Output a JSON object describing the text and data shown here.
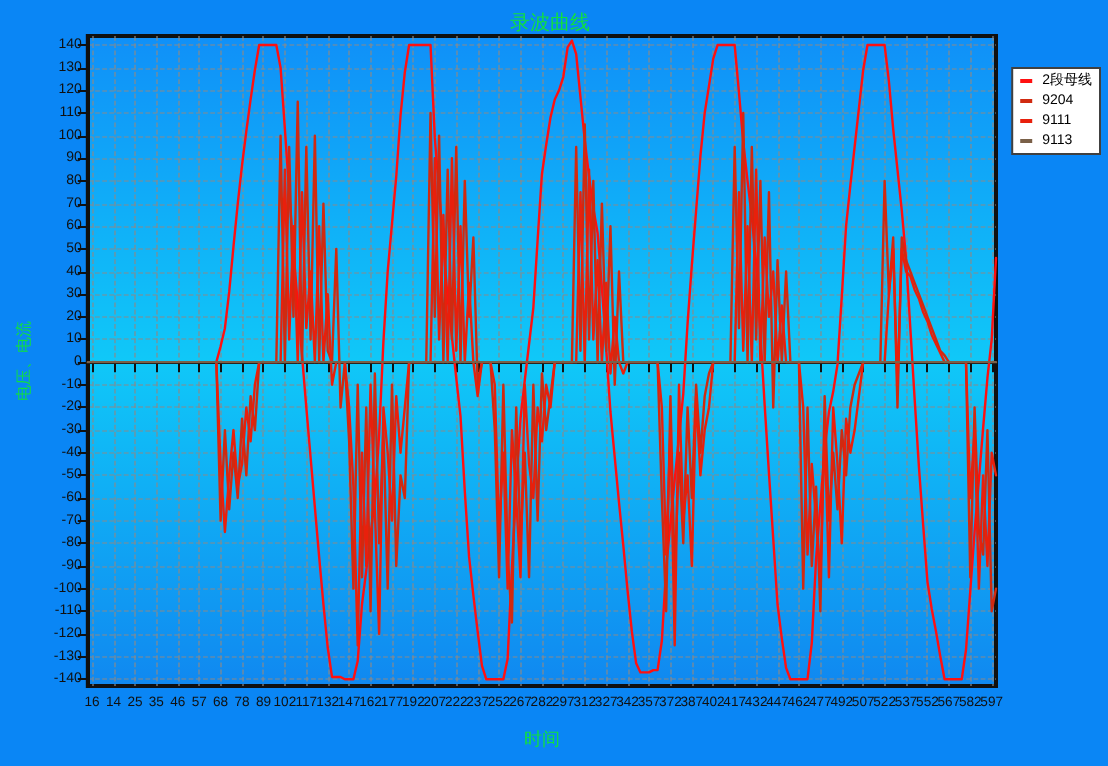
{
  "chart_data": {
    "type": "line",
    "title": "录波曲线",
    "xlabel": "时间",
    "ylabel": "电压、电流",
    "categories": [
      null,
      "16",
      null,
      null,
      null,
      null,
      "14",
      null,
      null,
      null,
      null,
      "25",
      null,
      null,
      null,
      null,
      "35",
      null,
      null,
      null,
      null,
      "46",
      null,
      null,
      null,
      null,
      "57",
      null,
      null,
      null,
      null,
      "68",
      null,
      null,
      null,
      null,
      "78",
      null,
      null,
      null,
      null,
      "89",
      null,
      null,
      null,
      null,
      "102",
      null,
      null,
      null,
      null,
      "117",
      null,
      null,
      null,
      null,
      "132",
      null,
      null,
      null,
      null,
      "147",
      null,
      null,
      null,
      null,
      "162",
      null,
      null,
      null,
      null,
      "177",
      null,
      null,
      null,
      null,
      "192",
      null,
      null,
      null,
      null,
      "207",
      null,
      null,
      null,
      null,
      "222",
      null,
      null,
      null,
      null,
      "237",
      null,
      null,
      null,
      null,
      "252",
      null,
      null,
      null,
      null,
      "267",
      null,
      null,
      null,
      null,
      "282",
      null,
      null,
      null,
      null,
      "297",
      null,
      null,
      null,
      null,
      "312",
      null,
      null,
      null,
      null,
      "327",
      null,
      null,
      null,
      null,
      "342",
      null,
      null,
      null,
      null,
      "357",
      null,
      null,
      null,
      null,
      "372",
      null,
      null,
      null,
      null,
      "387",
      null,
      null,
      null,
      null,
      "402",
      null,
      null,
      null,
      null,
      "417",
      null,
      null,
      null,
      null,
      "432",
      null,
      null,
      null,
      null,
      "447",
      null,
      null,
      null,
      null,
      "462",
      null,
      null,
      null,
      null,
      "477",
      null,
      null,
      null,
      null,
      "492",
      null,
      null,
      null,
      null,
      "507",
      null,
      null,
      null,
      null,
      "522",
      null,
      null,
      null,
      null,
      "537",
      null,
      null,
      null,
      null,
      "552",
      null,
      null,
      null,
      null,
      "567",
      null,
      null,
      null,
      null,
      "582",
      null,
      null,
      null,
      null,
      "597",
      null
    ],
    "ylim": [
      -143,
      144
    ],
    "yticks": [
      -140,
      -130,
      -120,
      -110,
      -100,
      -90,
      -80,
      -70,
      -60,
      -50,
      -40,
      -30,
      -20,
      -10,
      0,
      10,
      20,
      30,
      40,
      50,
      60,
      70,
      80,
      90,
      100,
      110,
      120,
      130,
      140
    ],
    "grid": true,
    "legend": "top right",
    "marker": "none",
    "line_style": "solid",
    "series": [
      {
        "name": "2段母线",
        "color": "#ff1010",
        "values": [
          null,
          null,
          null,
          null,
          null,
          null,
          null,
          null,
          null,
          null,
          null,
          null,
          null,
          null,
          null,
          null,
          null,
          null,
          null,
          null,
          null,
          null,
          null,
          null,
          null,
          null,
          null,
          null,
          null,
          null,
          0,
          7,
          15,
          31,
          51,
          70,
          87,
          102,
          116,
          129,
          140,
          140,
          140,
          140,
          140,
          130,
          103,
          75,
          49,
          26,
          3,
          -20,
          -42,
          -64,
          -86,
          -107,
          -126,
          -139,
          -139,
          -139,
          -140,
          -140,
          -140,
          -132,
          -107,
          -92,
          -76,
          -61,
          -32,
          9,
          40,
          61,
          82,
          109,
          128,
          140,
          140,
          140,
          140,
          140,
          140,
          99,
          75,
          52,
          28,
          11,
          -7,
          -24,
          -57,
          -86,
          -103,
          -119,
          -134,
          -140,
          -140,
          -140,
          -140,
          -140,
          -131,
          -91,
          -56,
          -25,
          -8,
          8,
          24,
          54,
          83,
          96,
          108,
          116,
          120,
          126,
          139,
          142,
          136,
          117,
          98,
          82,
          68,
          57,
          33,
          6,
          -22,
          -42,
          -62,
          -81,
          -101,
          -119,
          -133,
          -137,
          -137,
          -137,
          -136,
          -136,
          -123,
          -91,
          -71,
          -52,
          -33,
          -14,
          17,
          43,
          67,
          91,
          110,
          122,
          134,
          140,
          140,
          140,
          140,
          140,
          119,
          97,
          80,
          64,
          44,
          13,
          -19,
          -49,
          -78,
          -107,
          -122,
          -135,
          -140,
          -140,
          -140,
          -140,
          -140,
          -124,
          -87,
          -63,
          -39,
          -22,
          -13,
          -1,
          29,
          60,
          78,
          95,
          112,
          129,
          140,
          140,
          140,
          140,
          140,
          124,
          103,
          85,
          67,
          46,
          15,
          -16,
          -46,
          -72,
          -97,
          -109,
          -119,
          -130,
          -140,
          -140,
          -140,
          -140,
          -140,
          -127,
          -101,
          -75,
          -52,
          -29,
          -7,
          10,
          46
        ]
      },
      {
        "name": "9204",
        "color": "#d02a10",
        "values": [
          null,
          null,
          null,
          null,
          null,
          null,
          null,
          null,
          null,
          null,
          null,
          null,
          null,
          null,
          null,
          null,
          null,
          null,
          null,
          null,
          null,
          null,
          null,
          null,
          null,
          null,
          null,
          null,
          null,
          null,
          0,
          -70,
          -30,
          -65,
          -40,
          -60,
          -25,
          -50,
          -15,
          -30,
          0,
          0,
          0,
          0,
          0,
          100,
          0,
          95,
          20,
          115,
          0,
          95,
          10,
          100,
          0,
          70,
          5,
          0,
          50,
          -20,
          0,
          -35,
          -100,
          -10,
          -95,
          -20,
          -110,
          -5,
          -80,
          -30,
          -100,
          -10,
          -90,
          -50,
          -60,
          0,
          0,
          0,
          0,
          0,
          110,
          20,
          100,
          0,
          85,
          10,
          95,
          0,
          80,
          20,
          55,
          -10,
          0,
          0,
          0,
          -30,
          -95,
          -10,
          -85,
          -115,
          -20,
          -80,
          -40,
          -95,
          -10,
          -70,
          -5,
          -30,
          -15,
          0,
          0,
          0,
          0,
          0,
          95,
          5,
          105,
          10,
          80,
          0,
          70,
          5,
          60,
          -10,
          40,
          0,
          0,
          0,
          0,
          0,
          0,
          0,
          0,
          0,
          -60,
          -110,
          -15,
          -95,
          -40,
          -80,
          -20,
          -60,
          -10,
          -40,
          -15,
          -5,
          0,
          0,
          0,
          0,
          0,
          95,
          15,
          110,
          0,
          95,
          10,
          80,
          0,
          75,
          -20,
          45,
          0,
          40,
          0,
          0,
          0,
          -100,
          -20,
          -90,
          -55,
          -110,
          -15,
          -70,
          -40,
          -65,
          -30,
          -50,
          -20,
          -10,
          -5,
          0,
          0,
          0,
          0,
          0,
          80,
          30,
          55,
          -20,
          55,
          45,
          40,
          35,
          30,
          25,
          20,
          15,
          10,
          5,
          3,
          0,
          0,
          0,
          0,
          0,
          -95,
          -20,
          -75,
          -85,
          -30,
          -110,
          -100
        ]
      },
      {
        "name": "9111",
        "color": "#e8200c",
        "values": [
          null,
          null,
          null,
          null,
          null,
          null,
          null,
          null,
          null,
          null,
          null,
          null,
          null,
          null,
          null,
          null,
          null,
          null,
          null,
          null,
          null,
          null,
          null,
          null,
          null,
          null,
          null,
          null,
          null,
          null,
          0,
          -45,
          -75,
          -50,
          -30,
          -55,
          -45,
          -20,
          -35,
          -10,
          0,
          0,
          0,
          0,
          0,
          0,
          85,
          10,
          60,
          0,
          75,
          15,
          40,
          0,
          60,
          0,
          30,
          -10,
          0,
          0,
          0,
          -20,
          -55,
          -125,
          -40,
          -90,
          -10,
          -65,
          -120,
          -20,
          -40,
          -70,
          -15,
          -40,
          -20,
          0,
          0,
          0,
          0,
          0,
          0,
          90,
          10,
          65,
          0,
          90,
          5,
          60,
          0,
          35,
          0,
          -15,
          0,
          0,
          0,
          -10,
          -75,
          -40,
          -100,
          -30,
          -60,
          -95,
          -10,
          -45,
          -60,
          -20,
          -35,
          -10,
          -20,
          0,
          0,
          0,
          0,
          0,
          0,
          75,
          0,
          85,
          10,
          45,
          0,
          35,
          -5,
          20,
          0,
          -5,
          0,
          0,
          0,
          0,
          0,
          0,
          0,
          0,
          -20,
          -85,
          -30,
          -125,
          -10,
          -70,
          -50,
          -90,
          -15,
          -50,
          -30,
          -20,
          0,
          0,
          0,
          0,
          0,
          0,
          75,
          5,
          60,
          0,
          85,
          0,
          55,
          20,
          40,
          0,
          25,
          0,
          0,
          0,
          0,
          -20,
          -85,
          -45,
          -70,
          -95,
          -30,
          -95,
          -20,
          -45,
          -80,
          -25,
          -40,
          -30,
          -15,
          0,
          0,
          0,
          0,
          0,
          0,
          30,
          50,
          -10,
          50,
          40,
          38,
          32,
          28,
          22,
          18,
          12,
          8,
          4,
          0,
          0,
          0,
          0,
          0,
          0,
          -60,
          -30,
          -100,
          -50,
          -90,
          -40,
          -50
        ]
      },
      {
        "name": "9113",
        "color": "#7a6048",
        "values": [
          0,
          0,
          0,
          0,
          0,
          0,
          0,
          0,
          0,
          0,
          0,
          0,
          0,
          0,
          0,
          0,
          0,
          0,
          0,
          0,
          0,
          0,
          0,
          0,
          0,
          0,
          0,
          0,
          0,
          0,
          0,
          0,
          0,
          0,
          0,
          0,
          0,
          0,
          0,
          0,
          0,
          0,
          0,
          0,
          0,
          0,
          0,
          0,
          0,
          0,
          0,
          0,
          0,
          0,
          0,
          0,
          0,
          0,
          0,
          0,
          0,
          0,
          0,
          0,
          0,
          0,
          0,
          0,
          0,
          0,
          0,
          0,
          0,
          0,
          0,
          0,
          0,
          0,
          0,
          0,
          0,
          0,
          0,
          0,
          0,
          0,
          0,
          0,
          0,
          0,
          0,
          0,
          0,
          0,
          0,
          0,
          0,
          0,
          0,
          0,
          0,
          0,
          0,
          0,
          0,
          0,
          0,
          0,
          0,
          0,
          0,
          0,
          0,
          0,
          0,
          0,
          0,
          0,
          0,
          0,
          0,
          0,
          0,
          0,
          0,
          0,
          0,
          0,
          0,
          0,
          0,
          0,
          0,
          0,
          0,
          0,
          0,
          0,
          0,
          0,
          0,
          0,
          0,
          0,
          0,
          0,
          0,
          0,
          0,
          0,
          0,
          0,
          0,
          0,
          0,
          0,
          0,
          0,
          0,
          0,
          0,
          0,
          0,
          0,
          0,
          0,
          0,
          0,
          0,
          0,
          0,
          0,
          0,
          0,
          0,
          0,
          0,
          0,
          0,
          0,
          0,
          0,
          0,
          0,
          0,
          0,
          0,
          0,
          0,
          0,
          0,
          0,
          0,
          0,
          0,
          0,
          0,
          0,
          0,
          0,
          0,
          0,
          0,
          0,
          0,
          0,
          0,
          0,
          0,
          0,
          0,
          0,
          0
        ]
      }
    ]
  }
}
